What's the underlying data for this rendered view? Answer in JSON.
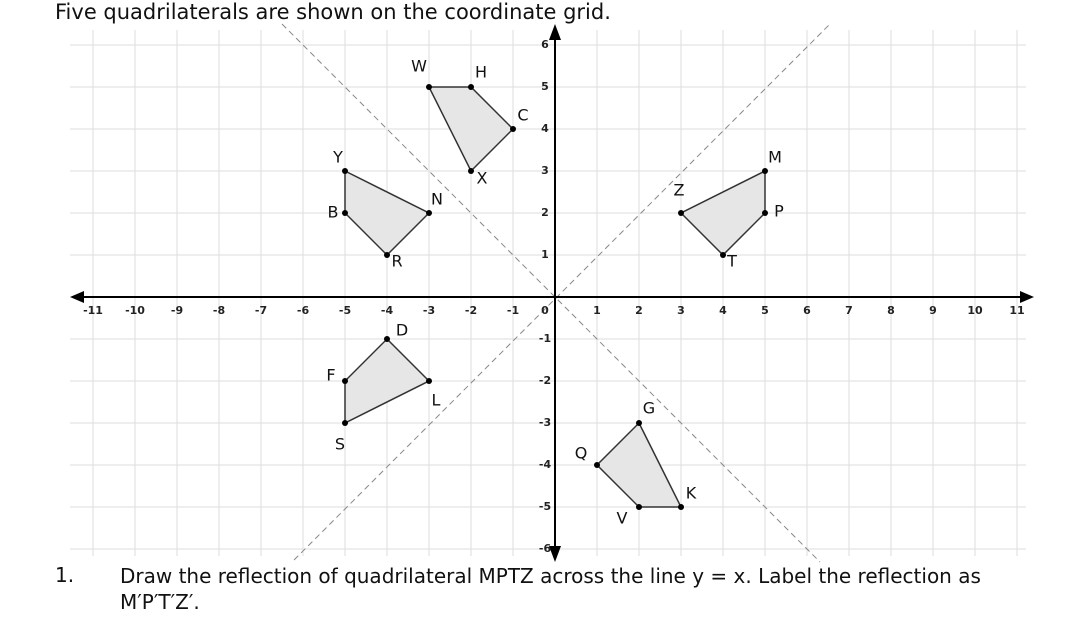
{
  "title": "Five quadrilaterals are shown on the coordinate grid.",
  "grid": {
    "xticks": [
      -11,
      -10,
      -9,
      -8,
      -7,
      -6,
      -5,
      -4,
      -3,
      -2,
      -1,
      0,
      1,
      2,
      3,
      4,
      5,
      6,
      7,
      8,
      9,
      10,
      11
    ],
    "yticks": [
      -6,
      -5,
      -4,
      -3,
      -2,
      -1,
      1,
      2,
      3,
      4,
      5,
      6
    ]
  },
  "shapes": [
    {
      "vertices": [
        {
          "label": "W",
          "x": -3,
          "y": 5
        },
        {
          "label": "H",
          "x": -2,
          "y": 5
        },
        {
          "label": "C",
          "x": -1,
          "y": 4
        },
        {
          "label": "X",
          "x": -2,
          "y": 3
        }
      ]
    },
    {
      "vertices": [
        {
          "label": "Y",
          "x": -5,
          "y": 3
        },
        {
          "label": "N",
          "x": -3,
          "y": 2
        },
        {
          "label": "R",
          "x": -4,
          "y": 1
        },
        {
          "label": "B",
          "x": -5,
          "y": 2
        }
      ]
    },
    {
      "vertices": [
        {
          "label": "M",
          "x": 5,
          "y": 3
        },
        {
          "label": "P",
          "x": 5,
          "y": 2
        },
        {
          "label": "T",
          "x": 4,
          "y": 1
        },
        {
          "label": "Z",
          "x": 3,
          "y": 2
        }
      ]
    },
    {
      "vertices": [
        {
          "label": "D",
          "x": -4,
          "y": -1
        },
        {
          "label": "L",
          "x": -3,
          "y": -2
        },
        {
          "label": "S",
          "x": -5,
          "y": -3
        },
        {
          "label": "F",
          "x": -5,
          "y": -2
        }
      ]
    },
    {
      "vertices": [
        {
          "label": "G",
          "x": 2,
          "y": -3
        },
        {
          "label": "K",
          "x": 3,
          "y": -5
        },
        {
          "label": "V",
          "x": 2,
          "y": -5
        },
        {
          "label": "Q",
          "x": 1,
          "y": -4
        }
      ]
    }
  ],
  "question": {
    "number": "1.",
    "text": "Draw the reflection of quadrilateral MPTZ across the line y = x. Label the reflection as M′P′T′Z′."
  }
}
